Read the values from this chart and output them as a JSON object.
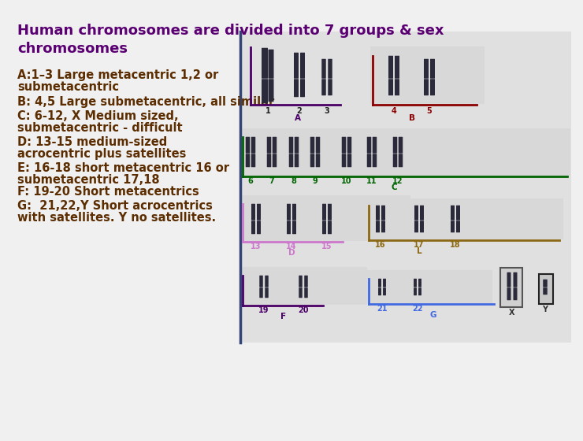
{
  "title_line1": "Human chromosomes are divided into 7 groups & sex",
  "title_line2": "chromosomes",
  "title_color": "#5b0072",
  "title_fontsize": 13,
  "body_color": "#5b2d00",
  "body_fontsize": 10.5,
  "bg_color": "#f0f0f0",
  "chrom_color": "#2a2a3a",
  "group_colors": {
    "A": "#4a0066",
    "B": "#8b0000",
    "C": "#006400",
    "D": "#cc77cc",
    "E": "#8b6914",
    "F": "#4a0066",
    "G": "#4169e1"
  },
  "display_lines": [
    "A:1–3 Large metacentric 1,2 or",
    "submetacentric",
    "B: 4,5 Large submetacentric, all similar",
    "C: 6-12, X Medium sized,",
    "submetacentric - difficult",
    "D: 13-15 medium-sized",
    "acrocentric plus satellites",
    "E: 16-18 short metacentric 16 or",
    "submetacentric 17,18",
    "F: 19-20 Short metacentrics",
    "G:  21,22,Y Short acrocentrics",
    "with satellites. Y no satellites."
  ]
}
